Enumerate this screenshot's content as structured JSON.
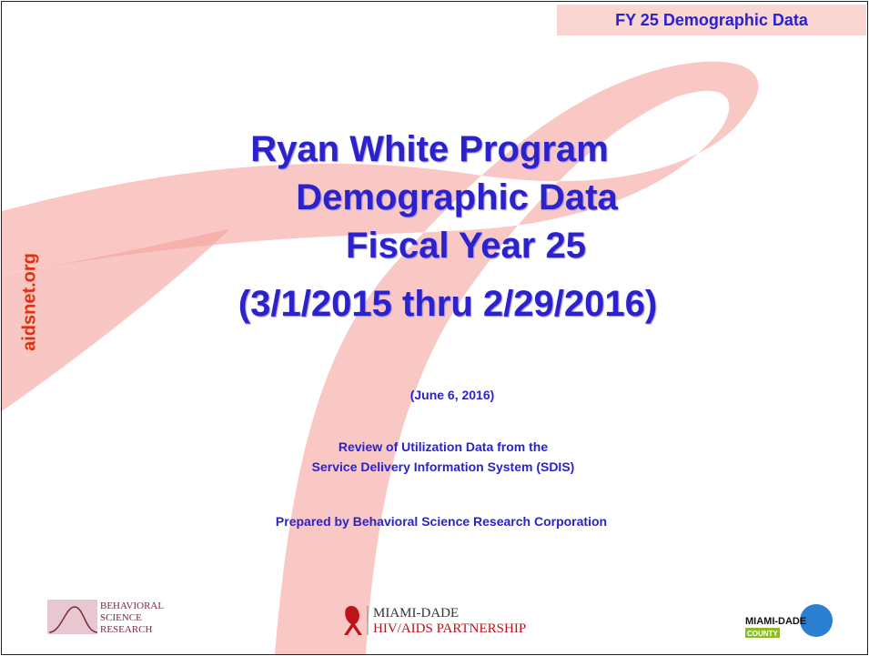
{
  "header": {
    "tag": "FY 25 Demographic Data"
  },
  "title": {
    "lines": [
      "Ryan White Program",
      "Demographic Data",
      "Fiscal Year 25"
    ],
    "period": "(3/1/2015 thru 2/29/2016)"
  },
  "date": "(June 6, 2016)",
  "description": [
    "Review of Utilization Data from the",
    "Service Delivery Information System (SDIS)"
  ],
  "prepared_by": "Prepared by Behavioral Science Research Corporation",
  "side_text": "aidsnet.org",
  "logos": {
    "bsr": [
      "BEHAVIORAL",
      "SCIENCE",
      "RESEARCH"
    ],
    "partnership": [
      "MIAMI-DADE",
      "HIV/AIDS PARTNERSHIP"
    ],
    "county": [
      "MIAMI-DADE",
      "COUNTY"
    ]
  }
}
